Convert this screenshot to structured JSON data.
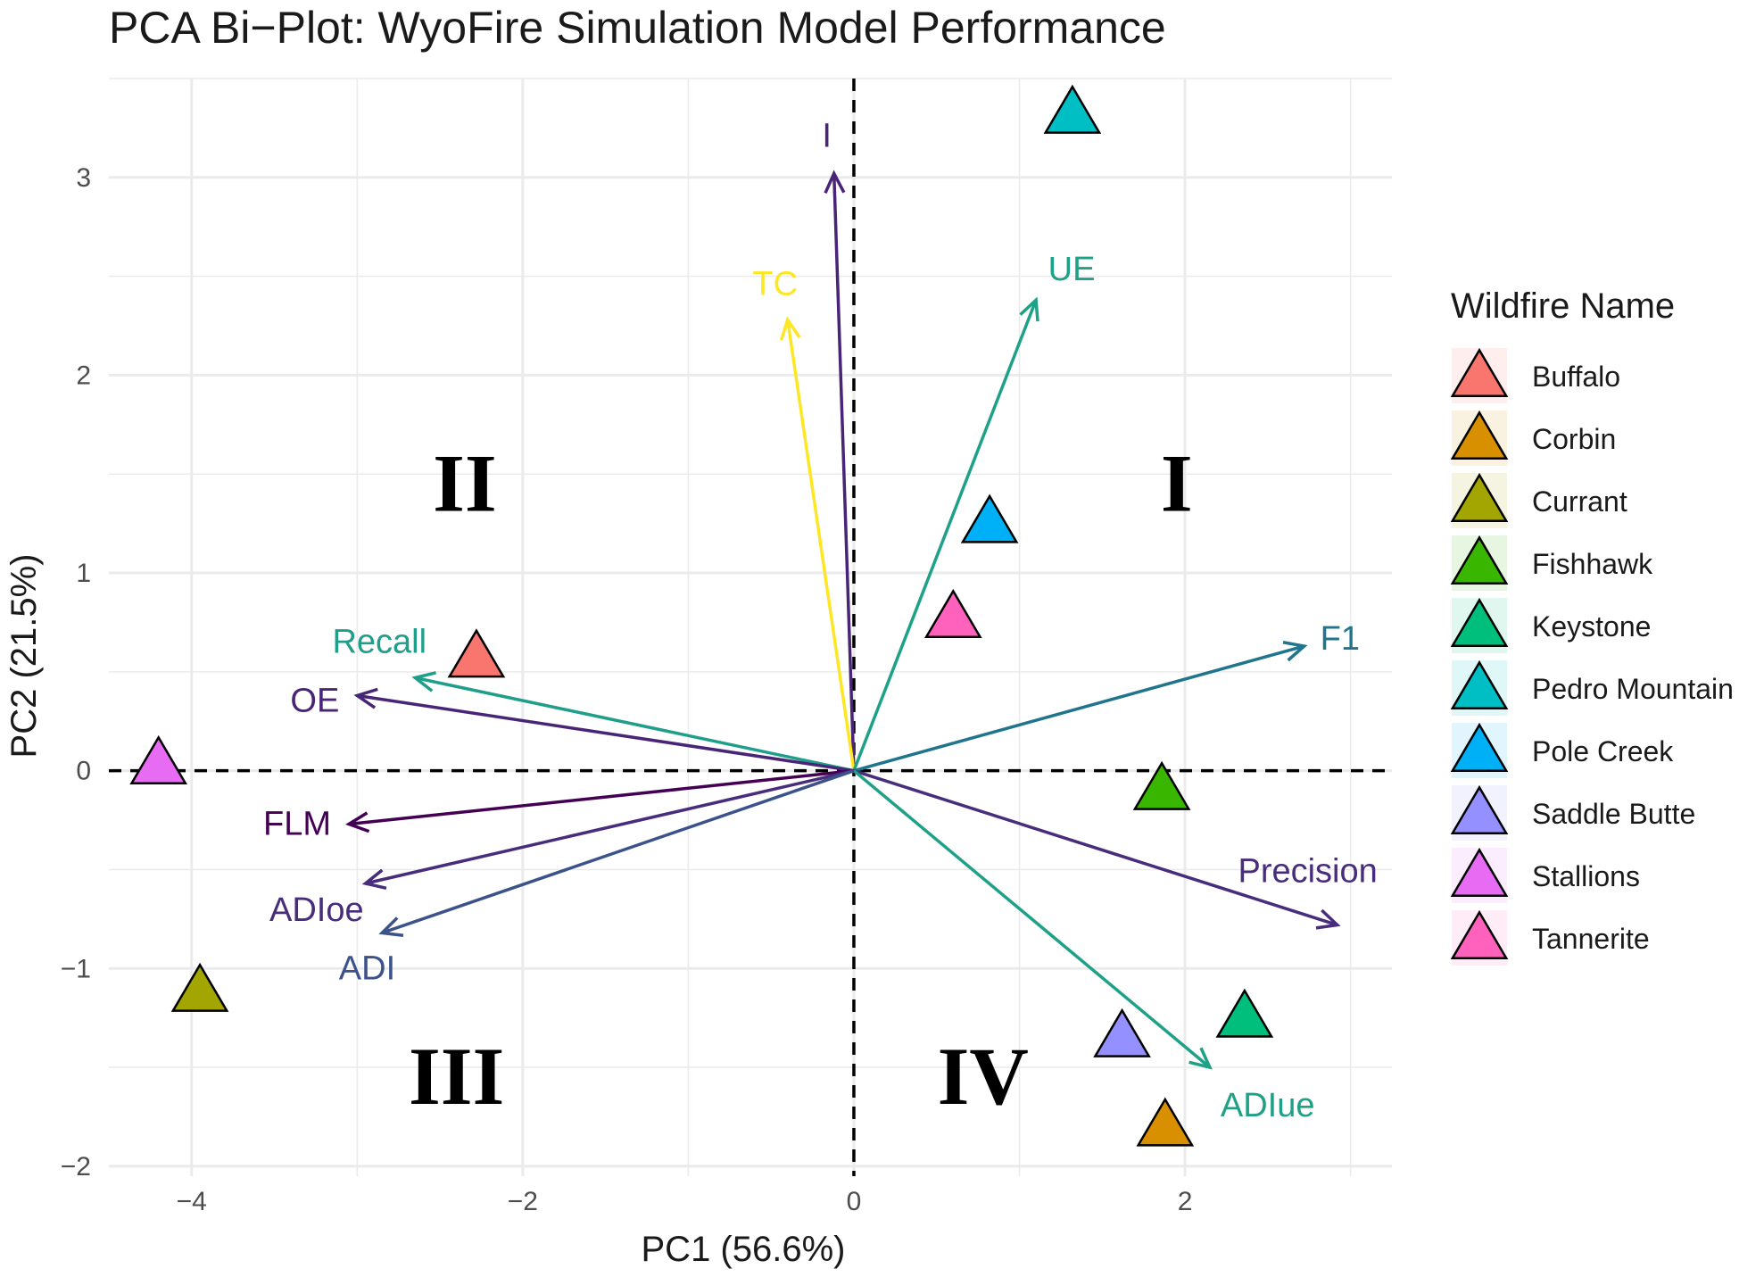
{
  "chart_data": {
    "type": "scatter",
    "title": "PCA Bi−Plot: WyoFire Simulation Model Performance",
    "xlabel": "PC1 (56.6%)",
    "ylabel": "PC2 (21.5%)",
    "xlim": [
      -4.5,
      3.25
    ],
    "ylim": [
      -2.05,
      3.5
    ],
    "xticks": [
      -4,
      -2,
      0,
      2
    ],
    "yticks": [
      -2,
      -1,
      0,
      1,
      2,
      3
    ],
    "xtick_labels": [
      "−4",
      "−2",
      "0",
      "2"
    ],
    "ytick_labels": [
      "−2",
      "−1",
      "0",
      "1",
      "2",
      "3"
    ],
    "grid": true,
    "legend_position": "right",
    "legend_title": "Wildfire Name",
    "quadrant_labels": [
      {
        "label": "I",
        "x": 1.95,
        "y": 1.45
      },
      {
        "label": "II",
        "x": -2.35,
        "y": 1.45
      },
      {
        "label": "III",
        "x": -2.4,
        "y": -1.55
      },
      {
        "label": "IV",
        "x": 0.78,
        "y": -1.55
      }
    ],
    "series": [
      {
        "name": "Buffalo",
        "x": -2.28,
        "y": 0.57,
        "color": "#F8766D"
      },
      {
        "name": "Corbin",
        "x": 1.88,
        "y": -1.8,
        "color": "#D89000"
      },
      {
        "name": "Currant",
        "x": -3.95,
        "y": -1.12,
        "color": "#A3A500"
      },
      {
        "name": "Fishhawk",
        "x": 1.86,
        "y": -0.1,
        "color": "#39B600"
      },
      {
        "name": "Keystone",
        "x": 2.36,
        "y": -1.25,
        "color": "#00BF7D"
      },
      {
        "name": "Pedro Mountain",
        "x": 1.32,
        "y": 3.32,
        "color": "#00BFC4"
      },
      {
        "name": "Pole Creek",
        "x": 0.82,
        "y": 1.25,
        "color": "#00B0F6"
      },
      {
        "name": "Saddle Butte",
        "x": 1.62,
        "y": -1.35,
        "color": "#9590FF"
      },
      {
        "name": "Stallions",
        "x": -4.2,
        "y": 0.03,
        "color": "#E76BF3"
      },
      {
        "name": "Tannerite",
        "x": 0.6,
        "y": 0.77,
        "color": "#FF62BC"
      }
    ],
    "loadings": [
      {
        "name": "I",
        "x": -0.12,
        "y": 3.02,
        "color": "#482576"
      },
      {
        "name": "TC",
        "x": -0.4,
        "y": 2.28,
        "color": "#FDE725"
      },
      {
        "name": "UE",
        "x": 1.1,
        "y": 2.38,
        "color": "#1FA187"
      },
      {
        "name": "F1",
        "x": 2.72,
        "y": 0.63,
        "color": "#20758D"
      },
      {
        "name": "Precision",
        "x": 2.92,
        "y": -0.78,
        "color": "#472D7B"
      },
      {
        "name": "ADIue",
        "x": 2.15,
        "y": -1.5,
        "color": "#1FA187"
      },
      {
        "name": "Recall",
        "x": -2.65,
        "y": 0.47,
        "color": "#1F9E89"
      },
      {
        "name": "OE",
        "x": -3.0,
        "y": 0.38,
        "color": "#482576"
      },
      {
        "name": "FLM",
        "x": -3.05,
        "y": -0.27,
        "color": "#440154"
      },
      {
        "name": "ADIoe",
        "x": -2.95,
        "y": -0.57,
        "color": "#472D7B"
      },
      {
        "name": "ADI",
        "x": -2.85,
        "y": -0.82,
        "color": "#3B528B"
      }
    ]
  }
}
